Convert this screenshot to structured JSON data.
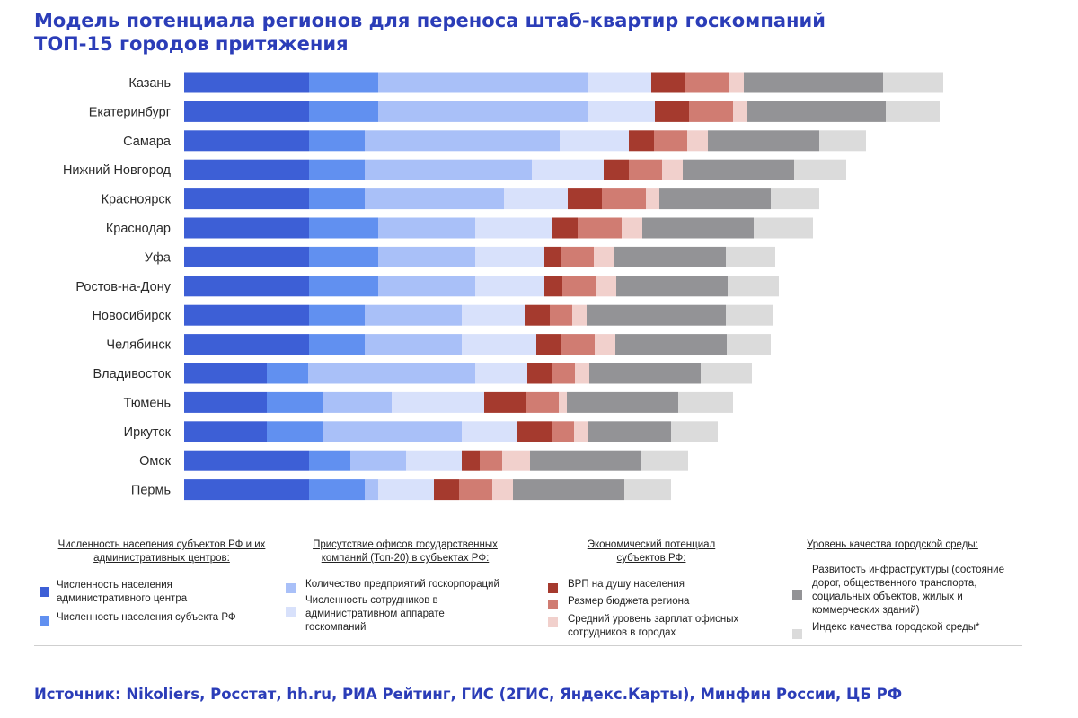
{
  "title_line1": "Модель потенциала регионов для переноса штаб-квартир госкомпаний",
  "title_line2": "ТОП-15 городов притяжения",
  "colors": {
    "pop_center": "#3d5fd6",
    "pop_region": "#6190f0",
    "gov_enterprises": "#a9c0f8",
    "gov_employees": "#d8e1fb",
    "grp": "#a53a2e",
    "budget": "#d07c72",
    "salary": "#f1d0cc",
    "infra": "#939396",
    "urban_index": "#dbdbdb"
  },
  "chart_data": {
    "type": "bar",
    "orientation": "horizontal",
    "stacked": true,
    "title": "Модель потенциала регионов для переноса штаб-квартир госкомпаний ТОП-15 городов притяжения",
    "units": "relative score (px-estimated)",
    "categories": [
      "Казань",
      "Екатеринбург",
      "Самара",
      "Нижний Новгород",
      "Красноярск",
      "Краснодар",
      "Уфа",
      "Ростов-на-Дону",
      "Новосибирск",
      "Челябинск",
      "Владивосток",
      "Тюмень",
      "Иркутск",
      "Омск",
      "Пермь"
    ],
    "series": [
      {
        "name": "Численность населения административного центра",
        "color_key": "pop_center",
        "values": [
          139,
          139,
          139,
          139,
          139,
          139,
          139,
          139,
          139,
          139,
          92,
          92,
          92,
          139,
          139
        ]
      },
      {
        "name": "Численность населения субъекта РФ",
        "color_key": "pop_region",
        "values": [
          77,
          77,
          62,
          62,
          62,
          77,
          77,
          77,
          62,
          62,
          46,
          62,
          62,
          46,
          62
        ]
      },
      {
        "name": "Количество предприятий госкорпораций",
        "color_key": "gov_enterprises",
        "values": [
          233,
          233,
          217,
          186,
          155,
          108,
          108,
          108,
          108,
          108,
          186,
          77,
          155,
          62,
          15
        ]
      },
      {
        "name": "Численность сотрудников в административном аппарате госкомпаний",
        "color_key": "gov_employees",
        "values": [
          71,
          75,
          77,
          80,
          71,
          86,
          77,
          77,
          70,
          83,
          58,
          103,
          62,
          62,
          62
        ]
      },
      {
        "name": "ВРП на душу населения",
        "color_key": "grp",
        "values": [
          38,
          38,
          28,
          28,
          38,
          28,
          18,
          20,
          28,
          28,
          28,
          46,
          38,
          20,
          28
        ]
      },
      {
        "name": "Размер бюджета региона",
        "color_key": "budget",
        "values": [
          49,
          49,
          37,
          37,
          49,
          49,
          37,
          37,
          25,
          37,
          25,
          37,
          25,
          25,
          37
        ]
      },
      {
        "name": "Средний уровень зарплат офисных сотрудников в городах",
        "color_key": "salary",
        "values": [
          16,
          15,
          23,
          23,
          15,
          23,
          23,
          23,
          16,
          23,
          16,
          9,
          16,
          31,
          23
        ]
      },
      {
        "name": "Развитость инфраструктуры (состояние дорог, общественного транспорта, социальных объектов, жилых и коммерческих зданий)",
        "color_key": "infra",
        "values": [
          155,
          155,
          124,
          124,
          124,
          124,
          124,
          124,
          155,
          124,
          124,
          124,
          92,
          124,
          124
        ]
      },
      {
        "name": "Индекс качества городской среды*",
        "color_key": "urban_index",
        "values": [
          67,
          60,
          52,
          58,
          54,
          66,
          55,
          57,
          53,
          49,
          57,
          61,
          52,
          52,
          52
        ]
      }
    ]
  },
  "legend": {
    "group1": {
      "heading": "Численность населения субъектов РФ и их административных центров:",
      "item1": "Численность населения административного центра",
      "item2": "Численность населения субъекта РФ"
    },
    "group2": {
      "heading": "Присутствие офисов государственных компаний (Топ-20) в субъектах РФ:",
      "item1": "Количество предприятий госкорпораций",
      "item2": "Численность сотрудников в административном аппарате госкомпаний"
    },
    "group3": {
      "heading": "Экономический потенциал субъектов РФ:",
      "item1": "ВРП на душу населения",
      "item2": "Размер бюджета региона",
      "item3": "Средний уровень зарплат офисных сотрудников в городах"
    },
    "group4": {
      "heading": "Уровень качества городской среды:",
      "item1": "Развитость инфраструктуры (состояние дорог, общественного транспорта, социальных объектов, жилых и коммерческих зданий)",
      "item2": "Индекс качества городской среды*"
    }
  },
  "source": "Источник: Nikoliers, Росстат, hh.ru, РИА Рейтинг, ГИС (2ГИС, Яндекс.Карты), Минфин России, ЦБ РФ"
}
